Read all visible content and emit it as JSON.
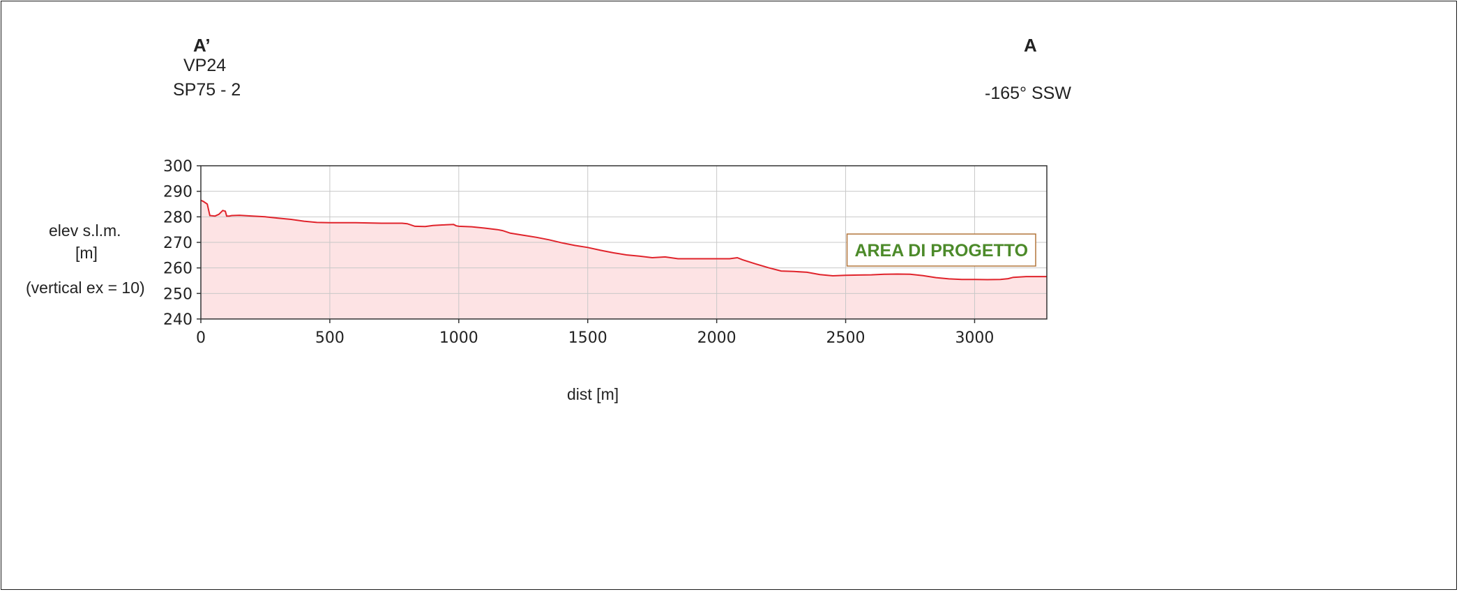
{
  "header": {
    "left_marker": "A’",
    "left_line1": "VP24",
    "left_line2": "SP75 - 2",
    "right_marker": "A",
    "right_bearing": "-165° SSW"
  },
  "colors": {
    "line": "#e0232b",
    "fill": "#fde3e4",
    "grid": "#c8c8c8",
    "annotation": "#4c8a2a",
    "annotation_border": "#b2753a"
  },
  "chart_data": {
    "type": "area",
    "xlabel": "dist [m]",
    "ylabel_lines": [
      "elev s.l.m.",
      "[m]",
      "(vertical ex = 10)"
    ],
    "xlim": [
      0,
      3280
    ],
    "ylim": [
      240,
      300
    ],
    "grid": true,
    "xticks": [
      0,
      500,
      1000,
      1500,
      2000,
      2500,
      3000
    ],
    "yticks": [
      240,
      250,
      260,
      270,
      280,
      290,
      300
    ],
    "annotations": [
      {
        "text": "AREA DI PROGETTO",
        "x_range": [
          2500,
          3280
        ]
      }
    ],
    "series": [
      {
        "x": [
          0,
          10,
          25,
          35,
          55,
          70,
          85,
          95,
          100,
          110,
          120,
          150,
          200,
          250,
          300,
          350,
          400,
          450,
          500,
          550,
          600,
          650,
          700,
          750,
          780,
          800,
          830,
          870,
          900,
          950,
          980,
          990,
          1000,
          1050,
          1100,
          1150,
          1170,
          1200,
          1250,
          1300,
          1350,
          1400,
          1450,
          1500,
          1550,
          1600,
          1650,
          1700,
          1750,
          1800,
          1850,
          1900,
          1950,
          2000,
          2050,
          2080,
          2100,
          2150,
          2200,
          2250,
          2300,
          2350,
          2400,
          2450,
          2500,
          2550,
          2600,
          2650,
          2700,
          2750,
          2800,
          2850,
          2900,
          2950,
          3000,
          3050,
          3100,
          3130,
          3150,
          3200,
          3280
        ],
        "y": [
          286.5,
          286,
          285,
          280.5,
          280.3,
          281,
          282.5,
          282.2,
          280.3,
          280.3,
          280.5,
          280.6,
          280.3,
          280,
          279.5,
          279,
          278.3,
          277.8,
          277.7,
          277.7,
          277.7,
          277.6,
          277.5,
          277.5,
          277.5,
          277.3,
          276.3,
          276.2,
          276.6,
          276.9,
          277,
          276.5,
          276.3,
          276.1,
          275.6,
          275,
          274.6,
          273.6,
          272.8,
          272,
          271,
          269.8,
          268.8,
          268,
          266.9,
          265.9,
          265.1,
          264.6,
          264,
          264.3,
          263.6,
          263.6,
          263.6,
          263.6,
          263.6,
          264,
          263.2,
          261.6,
          260.1,
          258.8,
          258.6,
          258.3,
          257.4,
          256.9,
          257.1,
          257.2,
          257.3,
          257.5,
          257.6,
          257.5,
          257,
          256.2,
          255.7,
          255.5,
          255.5,
          255.4,
          255.5,
          255.8,
          256.3,
          256.6,
          256.6
        ]
      }
    ]
  }
}
